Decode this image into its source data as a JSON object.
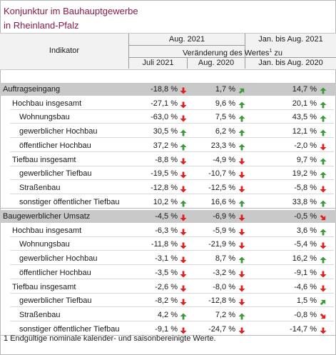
{
  "title_line1": "Konjunktur im Bauhauptgewerbe",
  "title_line2": "in Rheinland-Pfalz",
  "header": {
    "indikator": "Indikator",
    "aug2021": "Aug. 2021",
    "jan_aug2021": "Jan. bis Aug. 2021",
    "change_prefix": "Veränderung des Wertes",
    "change_sup": "1",
    "change_suffix": " zu",
    "col_juli2021": "Juli 2021",
    "col_aug2020": "Aug. 2020",
    "col_jan_aug2020": "Jan. bis Aug. 2020"
  },
  "colors": {
    "up": "#3a9a3a",
    "down": "#e02020",
    "title": "#8b1a4a"
  },
  "rows_a": [
    {
      "label": "Auftragseingang",
      "level": 0,
      "band": true,
      "v1": "-18,8 %",
      "a1": "down",
      "v2": "1,7 %",
      "a2": "up-right",
      "v3": "14,7 %",
      "a3": "up"
    },
    {
      "label": "Hochbau insgesamt",
      "level": 1,
      "v1": "-27,1 %",
      "a1": "down",
      "v2": "9,6 %",
      "a2": "up",
      "v3": "20,1 %",
      "a3": "up"
    },
    {
      "label": "Wohnungsbau",
      "level": 2,
      "v1": "-63,0 %",
      "a1": "down",
      "v2": "7,5 %",
      "a2": "up",
      "v3": "43,5 %",
      "a3": "up"
    },
    {
      "label": "gewerblicher Hochbau",
      "level": 2,
      "v1": "30,5 %",
      "a1": "up",
      "v2": "6,2 %",
      "a2": "up",
      "v3": "12,1 %",
      "a3": "up"
    },
    {
      "label": "öffentlicher Hochbau",
      "level": 2,
      "v1": "37,2 %",
      "a1": "up",
      "v2": "23,3 %",
      "a2": "up",
      "v3": "-2,0 %",
      "a3": "down"
    },
    {
      "label": "Tiefbau insgesamt",
      "level": 1,
      "v1": "-8,8 %",
      "a1": "down",
      "v2": "-4,9 %",
      "a2": "down",
      "v3": "9,7 %",
      "a3": "up"
    },
    {
      "label": "gewerblicher Tiefbau",
      "level": 2,
      "v1": "-19,5 %",
      "a1": "down",
      "v2": "-10,7 %",
      "a2": "down",
      "v3": "19,2 %",
      "a3": "up"
    },
    {
      "label": "Straßenbau",
      "level": 2,
      "v1": "-12,8 %",
      "a1": "down",
      "v2": "-12,5 %",
      "a2": "down",
      "v3": "-5,8 %",
      "a3": "down"
    },
    {
      "label": "sonstiger öffentlicher Tiefbau",
      "level": 2,
      "v1": "10,2 %",
      "a1": "up",
      "v2": "16,6 %",
      "a2": "up",
      "v3": "33,8 %",
      "a3": "up"
    }
  ],
  "rows_b": [
    {
      "label": "Baugewerblicher Umsatz",
      "level": 0,
      "band": true,
      "v1": "-4,5 %",
      "a1": "down",
      "v2": "-6,9 %",
      "a2": "down",
      "v3": "-0,5 %",
      "a3": "down-right"
    },
    {
      "label": "Hochbau insgesamt",
      "level": 1,
      "v1": "-6,3 %",
      "a1": "down",
      "v2": "-5,9 %",
      "a2": "down",
      "v3": "3,6 %",
      "a3": "up"
    },
    {
      "label": "Wohnungsbau",
      "level": 2,
      "v1": "-11,8 %",
      "a1": "down",
      "v2": "-21,9 %",
      "a2": "down",
      "v3": "-5,4 %",
      "a3": "down"
    },
    {
      "label": "gewerblicher Hochbau",
      "level": 2,
      "v1": "-3,1 %",
      "a1": "down",
      "v2": "8,7 %",
      "a2": "up",
      "v3": "16,2 %",
      "a3": "up"
    },
    {
      "label": "öffentlicher Hochbau",
      "level": 2,
      "v1": "-3,5 %",
      "a1": "down",
      "v2": "-3,2 %",
      "a2": "down",
      "v3": "-9,1 %",
      "a3": "down"
    },
    {
      "label": "Tiefbau insgesamt",
      "level": 1,
      "v1": "-2,6 %",
      "a1": "down",
      "v2": "-8,0 %",
      "a2": "down",
      "v3": "-4,6 %",
      "a3": "down"
    },
    {
      "label": "gewerblicher Tiefbau",
      "level": 2,
      "v1": "-8,2 %",
      "a1": "down",
      "v2": "-12,8 %",
      "a2": "down",
      "v3": "1,5 %",
      "a3": "up-right"
    },
    {
      "label": "Straßenbau",
      "level": 2,
      "v1": "4,2 %",
      "a1": "up",
      "v2": "7,2 %",
      "a2": "up",
      "v3": "-0,8 %",
      "a3": "down-right"
    },
    {
      "label": "sonstiger öffentlicher Tiefbau",
      "level": 2,
      "v1": "-9,1 %",
      "a1": "down",
      "v2": "-24,7 %",
      "a2": "down",
      "v3": "-14,7 %",
      "a3": "down"
    }
  ],
  "footnote": "1 Endgültige nominale kalender- und saisonbereinigte Werte."
}
